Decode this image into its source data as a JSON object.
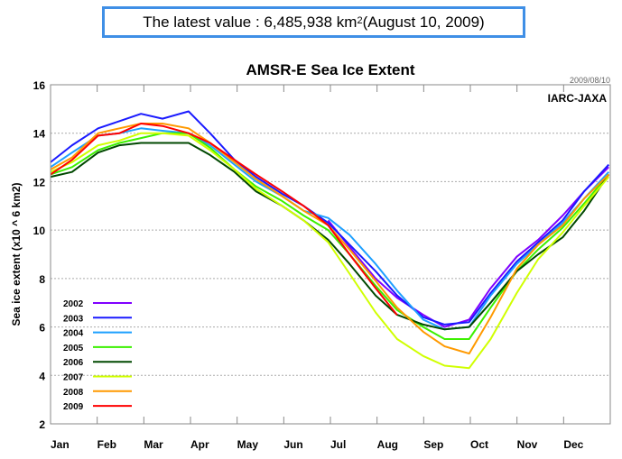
{
  "banner": {
    "prefix": "The latest value : 6,485,938 km",
    "superscript": "2",
    "suffix": " (August 10, 2009)"
  },
  "chart_data": {
    "type": "line",
    "title": "AMSR-E Sea Ice Extent",
    "date_stamp": "2009/08/10",
    "credit": "IARC-JAXA",
    "xlabel": "",
    "ylabel": "Sea ice extent (x10 ^ 6 km2)",
    "ylim": [
      2,
      16
    ],
    "yticks": [
      2,
      4,
      6,
      8,
      10,
      12,
      14,
      16
    ],
    "xticks": [
      "Jan",
      "Feb",
      "Mar",
      "Apr",
      "May",
      "Jun",
      "Jul",
      "Aug",
      "Sep",
      "Oct",
      "Nov",
      "Dec"
    ],
    "xlim_days": [
      1,
      366
    ],
    "grid": "horizontal-dotted",
    "legend_position": "bottom-left",
    "x_days": [
      1,
      15,
      32,
      46,
      60,
      74,
      91,
      105,
      121,
      135,
      152,
      166,
      182,
      196,
      213,
      227,
      244,
      258,
      274,
      288,
      305,
      319,
      335,
      349,
      365
    ],
    "series": [
      {
        "name": "2002",
        "color": "#8000ff",
        "values": [
          null,
          null,
          null,
          null,
          null,
          null,
          null,
          null,
          null,
          null,
          null,
          null,
          10.4,
          9.3,
          8.0,
          7.2,
          6.5,
          6.0,
          6.3,
          7.6,
          8.9,
          9.6,
          10.6,
          11.6,
          12.6
        ]
      },
      {
        "name": "2003",
        "color": "#1a1aff",
        "values": [
          12.8,
          13.5,
          14.2,
          14.5,
          14.8,
          14.6,
          14.9,
          14.0,
          12.9,
          12.2,
          11.5,
          11.0,
          10.3,
          9.4,
          8.3,
          7.3,
          6.4,
          6.1,
          6.2,
          7.4,
          8.7,
          9.5,
          10.4,
          11.6,
          12.7
        ]
      },
      {
        "name": "2004",
        "color": "#1ea0ff",
        "values": [
          12.6,
          13.2,
          13.9,
          14.0,
          14.2,
          14.1,
          14.0,
          13.5,
          12.7,
          12.0,
          11.4,
          10.8,
          10.5,
          9.8,
          8.6,
          7.5,
          6.3,
          5.9,
          6.0,
          7.3,
          8.6,
          9.4,
          10.3,
          11.3,
          12.4
        ]
      },
      {
        "name": "2005",
        "color": "#3cf000",
        "values": [
          12.3,
          12.6,
          13.3,
          13.6,
          13.8,
          14.0,
          14.0,
          13.4,
          12.5,
          11.8,
          11.2,
          10.6,
          10.0,
          9.0,
          7.7,
          6.7,
          6.0,
          5.5,
          5.5,
          6.8,
          8.3,
          9.2,
          10.1,
          11.1,
          12.3
        ]
      },
      {
        "name": "2006",
        "color": "#004800",
        "values": [
          12.2,
          12.4,
          13.2,
          13.5,
          13.6,
          13.6,
          13.6,
          13.1,
          12.4,
          11.6,
          11.0,
          10.4,
          9.6,
          8.6,
          7.3,
          6.5,
          6.1,
          5.9,
          6.0,
          7.0,
          8.3,
          9.0,
          9.7,
          10.8,
          12.3
        ]
      },
      {
        "name": "2007",
        "color": "#d0ff00",
        "values": [
          12.4,
          12.8,
          13.5,
          13.7,
          14.0,
          14.0,
          13.9,
          13.3,
          12.5,
          11.7,
          11.0,
          10.4,
          9.5,
          8.2,
          6.6,
          5.5,
          4.8,
          4.4,
          4.3,
          5.5,
          7.4,
          8.8,
          9.9,
          11.0,
          12.2
        ]
      },
      {
        "name": "2008",
        "color": "#ff9900",
        "values": [
          12.5,
          13.0,
          14.0,
          14.2,
          14.4,
          14.4,
          14.2,
          13.6,
          12.8,
          12.1,
          11.4,
          10.8,
          10.2,
          9.2,
          7.9,
          6.8,
          5.8,
          5.2,
          4.9,
          6.4,
          8.4,
          9.4,
          10.2,
          11.3,
          12.3
        ]
      },
      {
        "name": "2009",
        "color": "#ff0000",
        "values": [
          12.3,
          12.9,
          13.9,
          14.0,
          14.4,
          14.3,
          14.0,
          13.6,
          12.9,
          12.3,
          11.6,
          11.0,
          10.2,
          9.0,
          7.6,
          6.49,
          null,
          null,
          null,
          null,
          null,
          null,
          null,
          null,
          null
        ]
      }
    ]
  }
}
